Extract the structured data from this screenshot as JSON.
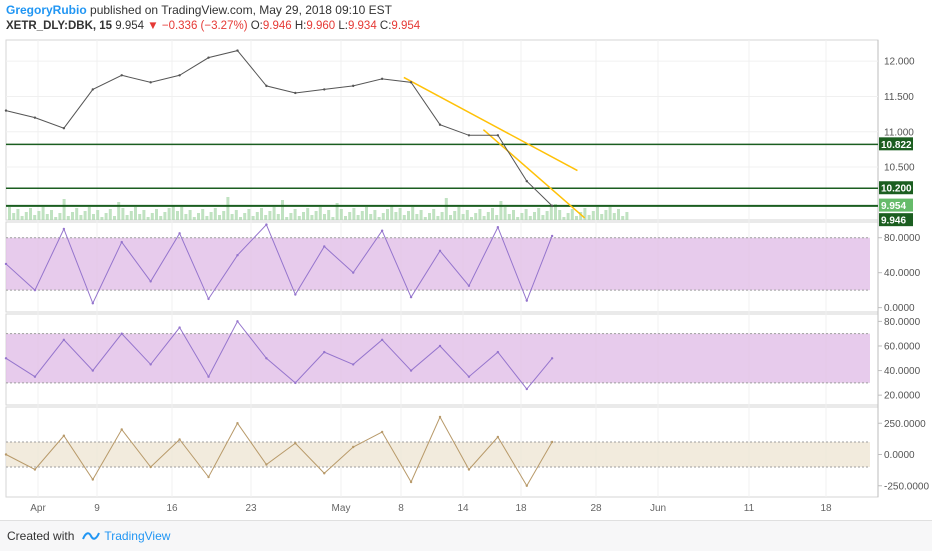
{
  "header": {
    "author": "GregoryRubio",
    "published_text": "published on TradingView.com, May 29, 2018 09:10 EST",
    "symbol": "XETR_DLY:DBK, 15",
    "last": "9.954",
    "change": "▼ −0.336 (−3.27%)",
    "o_label": "O:",
    "o_value": "9.946",
    "h_label": "H:",
    "h_value": "9.960",
    "l_label": "L:",
    "l_value": "9.934",
    "c_label": "C:",
    "c_value": "9.954"
  },
  "footer": {
    "created": "Created with",
    "brand": "TradingView"
  },
  "colors": {
    "price_line": "#555555",
    "support": "#1b5e20",
    "trend": "#ffc107",
    "rsi_fill": "#e1bee7",
    "rsi_line": "#9575cd",
    "cci_fill": "#efe6d4",
    "cci_line": "#b89a6a",
    "last_tag": "#66bb6a",
    "volume": "#a5d6a7"
  },
  "chart_data": [
    {
      "type": "line",
      "title": "XETR_DLY:DBK, 15",
      "x_ticks": [
        "Apr",
        "9",
        "16",
        "23",
        "May",
        "8",
        "14",
        "18",
        "28",
        "Jun",
        "11",
        "18"
      ],
      "y_ticks": [
        "12.000",
        "11.500",
        "11.000",
        "10.500"
      ],
      "ylim": [
        9.75,
        12.3
      ],
      "series": [
        {
          "x": [
            0,
            4,
            8,
            12,
            16,
            20,
            24,
            28,
            32,
            36,
            40,
            44,
            48,
            52,
            56,
            60,
            64,
            68,
            72,
            75.5
          ],
          "values": [
            11.3,
            11.2,
            11.05,
            11.6,
            11.8,
            11.7,
            11.8,
            12.05,
            12.15,
            11.65,
            11.55,
            11.6,
            11.65,
            11.75,
            11.7,
            11.1,
            10.95,
            10.95,
            10.3,
            9.95
          ]
        }
      ],
      "horizontal_levels": [
        10.822,
        10.2,
        9.954,
        9.946
      ],
      "trendlines": [
        {
          "from": [
            55,
            11.77
          ],
          "to": [
            79,
            10.45
          ]
        },
        {
          "from": [
            66,
            11.03
          ],
          "to": [
            80,
            9.78
          ]
        }
      ],
      "price_tags": [
        {
          "label": "10.822",
          "value": 10.822
        },
        {
          "label": "10.200",
          "value": 10.2
        },
        {
          "label": "9.954",
          "value": 9.954
        },
        {
          "label": "9.946",
          "value": 9.946
        }
      ]
    },
    {
      "type": "line",
      "title": "",
      "y_ticks": [
        "80.0000",
        "40.0000",
        "0.0000"
      ],
      "ylim": [
        -5,
        98
      ],
      "band": [
        20,
        80
      ],
      "series": [
        {
          "x": [
            0,
            4,
            8,
            12,
            16,
            20,
            24,
            28,
            32,
            36,
            40,
            44,
            48,
            52,
            56,
            60,
            64,
            68,
            72,
            75.5
          ],
          "values": [
            50,
            20,
            90,
            5,
            75,
            30,
            85,
            10,
            60,
            95,
            15,
            70,
            40,
            88,
            12,
            65,
            25,
            92,
            8,
            82
          ]
        }
      ]
    },
    {
      "type": "line",
      "title": "",
      "y_ticks": [
        "80.0000",
        "60.0000",
        "40.0000",
        "20.0000"
      ],
      "ylim": [
        12,
        86
      ],
      "band": [
        30,
        70
      ],
      "series": [
        {
          "x": [
            0,
            4,
            8,
            12,
            16,
            20,
            24,
            28,
            32,
            36,
            40,
            44,
            48,
            52,
            56,
            60,
            64,
            68,
            72,
            75.5
          ],
          "values": [
            50,
            35,
            65,
            40,
            70,
            45,
            75,
            35,
            80,
            50,
            30,
            55,
            45,
            65,
            40,
            60,
            35,
            55,
            25,
            50
          ]
        }
      ]
    },
    {
      "type": "line",
      "title": "",
      "y_ticks": [
        "250.0000",
        "0.0000",
        "-250.0000"
      ],
      "ylim": [
        -340,
        380
      ],
      "band": [
        -100,
        100
      ],
      "series": [
        {
          "x": [
            0,
            4,
            8,
            12,
            16,
            20,
            24,
            28,
            32,
            36,
            40,
            44,
            48,
            52,
            56,
            60,
            64,
            68,
            72,
            75.5
          ],
          "values": [
            0,
            -120,
            150,
            -200,
            200,
            -100,
            120,
            -180,
            250,
            -80,
            90,
            -150,
            60,
            180,
            -220,
            300,
            -120,
            140,
            -250,
            100
          ]
        }
      ]
    }
  ]
}
